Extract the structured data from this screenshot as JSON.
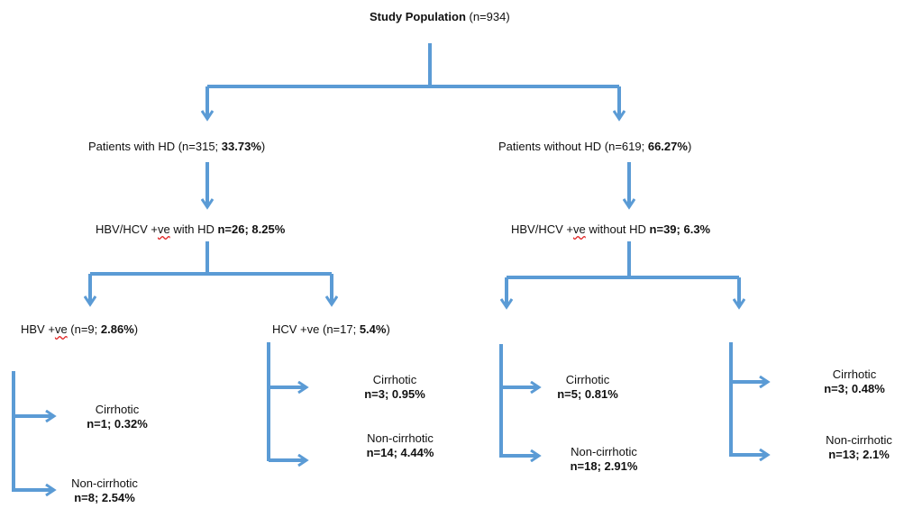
{
  "colors": {
    "arrow": "#5b9bd5",
    "text": "#111111"
  },
  "root": {
    "title_bold": "Study Population",
    "title_rest": " (n=934)"
  },
  "groups": {
    "with_hd": {
      "text": "Patients with HD (n=315; ",
      "pct": "33.73%",
      "close": ")"
    },
    "without_hd": {
      "text": "Patients without HD (n=619; ",
      "pct": "66.27%",
      "close": ")"
    }
  },
  "subgroups": {
    "with_hd": {
      "a": "HBV/HCV +",
      "ve": "ve",
      "b": " with HD ",
      "stat": "n=26; 8.25%"
    },
    "without_hd": {
      "a": "HBV/HCV +",
      "ve": "ve",
      "b": " without HD ",
      "stat": "n=39; 6.3%"
    }
  },
  "virus": {
    "hbv": {
      "a": "HBV +",
      "ve": "ve",
      "b": " (n=9;  ",
      "pct": "2.86%",
      "close": ")"
    },
    "hcv": {
      "a": "HCV +ve (n=17;  ",
      "pct": "5.4%",
      "close": ")"
    }
  },
  "outcomes": {
    "hbv_cirrhotic": {
      "label": "Cirrhotic",
      "stat": "n=1; 0.32%"
    },
    "hbv_noncirrhotic": {
      "label": "Non-cirrhotic",
      "stat": "n=8; 2.54%"
    },
    "hcv_cirrhotic": {
      "label": "Cirrhotic",
      "stat": "n=3; 0.95%"
    },
    "hcv_noncirrhotic": {
      "label": "Non-cirrhotic",
      "stat": "n=14; 4.44%"
    },
    "nohd1_cirrhotic": {
      "label": "Cirrhotic",
      "stat": "n=5; 0.81%"
    },
    "nohd1_noncirrhotic": {
      "label": "Non-cirrhotic",
      "stat": "n=18; 2.91%"
    },
    "nohd2_cirrhotic": {
      "label": "Cirrhotic",
      "stat": "n=3; 0.48%"
    },
    "nohd2_noncirrhotic": {
      "label": "Non-cirrhotic",
      "stat": "n=13; 2.1%"
    }
  }
}
